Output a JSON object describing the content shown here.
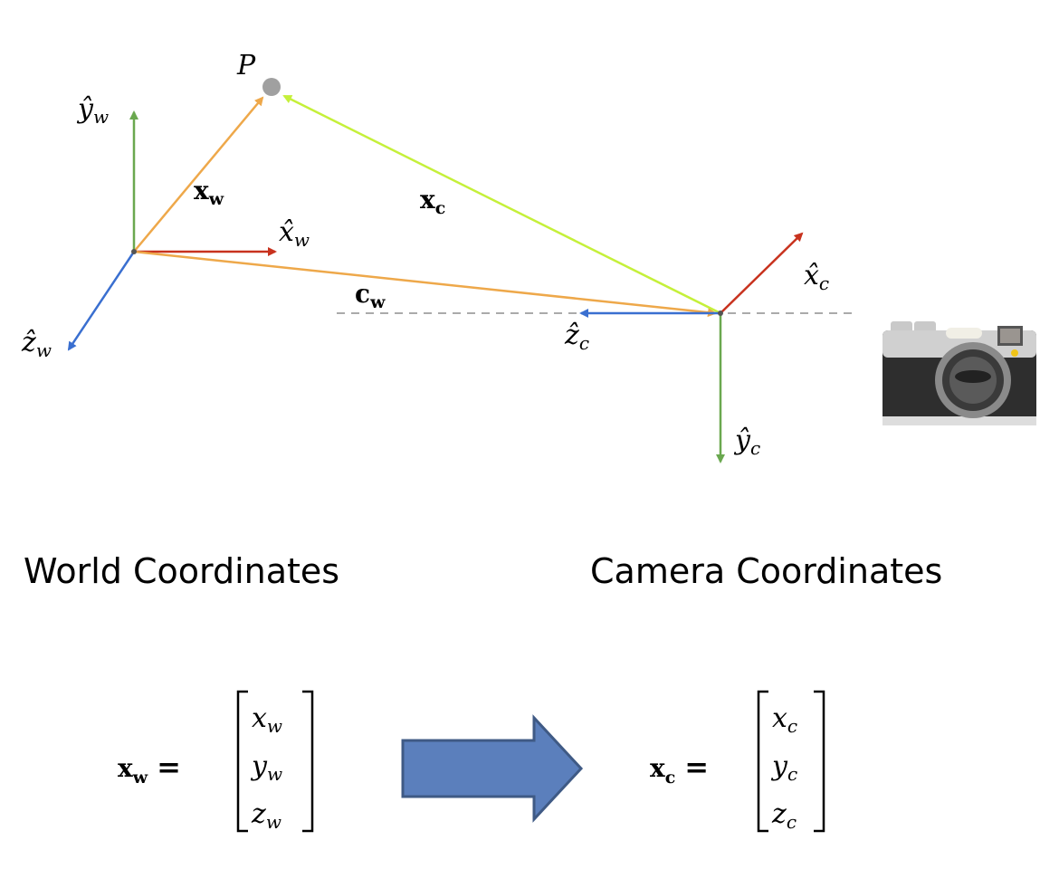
{
  "point": {
    "label": "P"
  },
  "world": {
    "caption": "World Coordinates",
    "axes": {
      "x": {
        "base": "x̂",
        "sub": "w"
      },
      "y": {
        "base": "ŷ",
        "sub": "w"
      },
      "z": {
        "base": "ẑ",
        "sub": "w"
      }
    },
    "vector": {
      "base": "x",
      "sub": "w"
    },
    "equation": {
      "lhs_base": "x",
      "lhs_sub": "w",
      "equals": "=",
      "entries": [
        {
          "base": "x",
          "sub": "w"
        },
        {
          "base": "y",
          "sub": "w"
        },
        {
          "base": "z",
          "sub": "w"
        }
      ]
    }
  },
  "camera": {
    "caption": "Camera Coordinates",
    "axes": {
      "x": {
        "base": "x̂",
        "sub": "c"
      },
      "y": {
        "base": "ŷ",
        "sub": "c"
      },
      "z": {
        "base": "ẑ",
        "sub": "c"
      }
    },
    "vector": {
      "base": "x",
      "sub": "c"
    },
    "center": {
      "base": "c",
      "sub": "w"
    },
    "equation": {
      "lhs_base": "x",
      "lhs_sub": "c",
      "equals": "=",
      "entries": [
        {
          "base": "x",
          "sub": "c"
        },
        {
          "base": "y",
          "sub": "c"
        },
        {
          "base": "z",
          "sub": "c"
        }
      ]
    }
  },
  "colors": {
    "x_axis": "#c8321e",
    "y_axis": "#6aa84f",
    "z_axis": "#3a6fd0",
    "orange": "#eea84a",
    "lime": "#c5f03a",
    "point": "#a0a0a0",
    "arrow_fill": "#5b7fbc",
    "arrow_stroke": "#3f5a85"
  }
}
